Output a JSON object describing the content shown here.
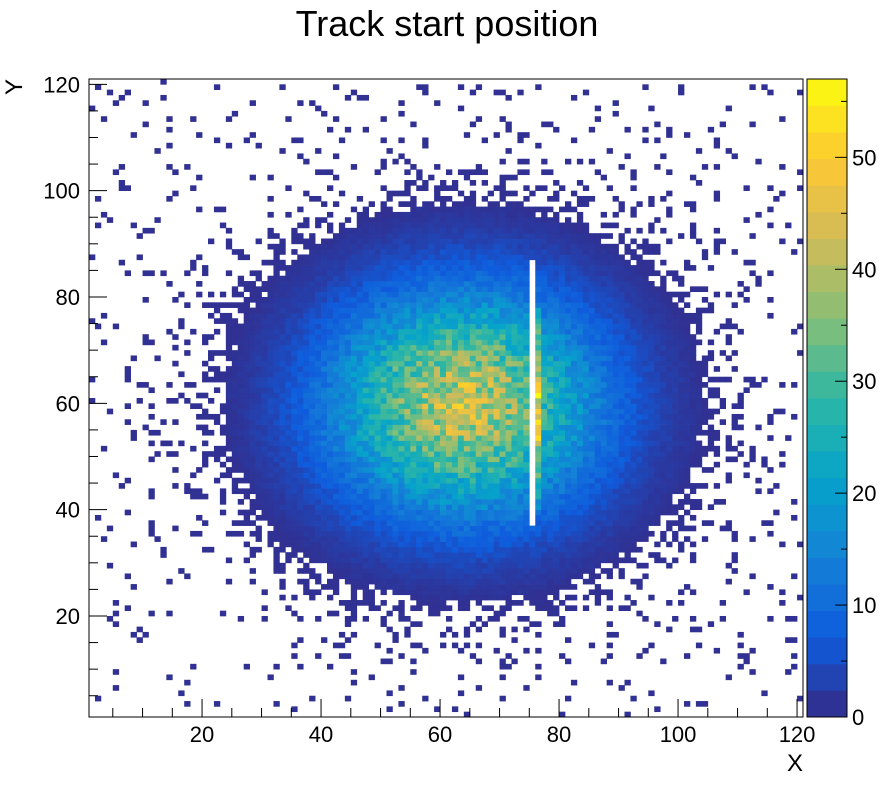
{
  "chart_data": {
    "type": "heatmap",
    "title": "Track start position",
    "xlabel": "X",
    "ylabel": "Y",
    "xlim": [
      1,
      121
    ],
    "ylim": [
      1,
      121
    ],
    "x_ticks": [
      20,
      40,
      60,
      80,
      100,
      120
    ],
    "y_ticks": [
      20,
      40,
      60,
      80,
      100,
      120
    ],
    "bins_x": 120,
    "bins_y": 120,
    "z_range": [
      0,
      57
    ],
    "z_ticks": [
      0,
      10,
      20,
      30,
      40,
      50
    ],
    "grid": false,
    "colormap": "parula",
    "colormap_stops": [
      "#352a87",
      "#0f5cdd",
      "#1481d6",
      "#06a4ca",
      "#2eb7a4",
      "#87bf77",
      "#d1bb59",
      "#fec832",
      "#f9fb0e"
    ],
    "distribution": {
      "center_x": 64,
      "center_y": 60,
      "peak_count": 42,
      "sigma_x": 15,
      "sigma_y": 14,
      "noise_level": 0.05,
      "gap_x_range": [
        75,
        76
      ],
      "gap_y_range": [
        37,
        87
      ],
      "hot_strip_x": 76,
      "hot_strip_y_range": [
        40,
        78
      ]
    }
  }
}
